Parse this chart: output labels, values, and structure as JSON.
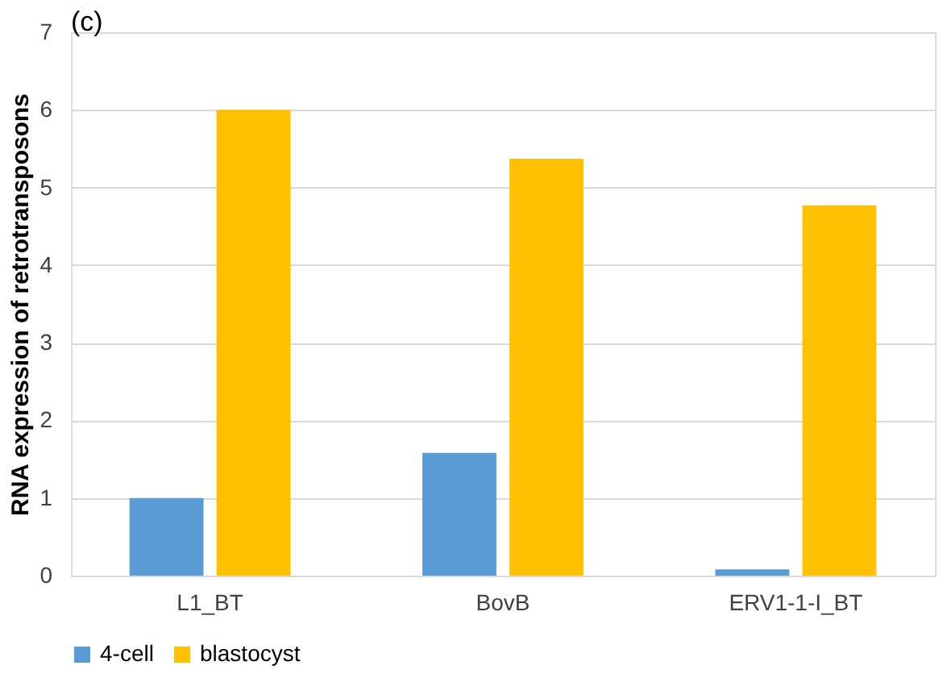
{
  "chart_data": {
    "type": "bar",
    "title": "(c)",
    "ylabel": "RNA expression of retrotransposons",
    "categories": [
      "L1_BT",
      "BovB",
      "ERV1-1-I_BT"
    ],
    "series": [
      {
        "name": "4-cell",
        "color": "#5b9bd5",
        "values": [
          1.0,
          1.58,
          0.08
        ]
      },
      {
        "name": "blastocyst",
        "color": "#ffc000",
        "values": [
          6.0,
          5.37,
          4.77
        ]
      }
    ],
    "ylim": [
      0,
      7
    ],
    "yticks": [
      0,
      1,
      2,
      3,
      4,
      5,
      6,
      7
    ],
    "grid": "y",
    "legend": "bottom"
  }
}
